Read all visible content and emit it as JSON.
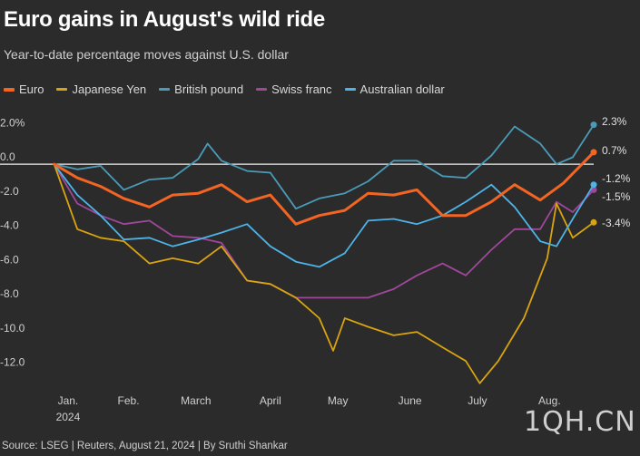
{
  "title": "Euro gains in August's wild ride",
  "subtitle": "Year-to-date percentage moves against U.S. dollar",
  "footer": "Source: LSEG | Reuters, August 21, 2024 | By Sruthi Shankar",
  "watermark": "1QH.CN",
  "chart_data": {
    "type": "line",
    "ylim": [
      -13.5,
      3.5
    ],
    "xlim": [
      "2024-01-01",
      "2024-08-21"
    ],
    "grid": false,
    "legend_position": "top",
    "yticks": [
      2.0,
      0.0,
      -2.0,
      -4.0,
      -6.0,
      -8.0,
      -10.0,
      -12.0
    ],
    "ytick_labels": [
      "2.0%",
      "0.0",
      "-2.0",
      "-4.0",
      "-6.0",
      "-8.0",
      "-10.0",
      "-12.0"
    ],
    "xtick_labels": [
      "Jan.",
      "Feb.",
      "March",
      "April",
      "May",
      "June",
      "July",
      "Aug."
    ],
    "xtick_sublabel": "2024",
    "series": [
      {
        "name": "Euro",
        "color": "#f26522",
        "width": 3,
        "end_label": "0.7%",
        "dates": [
          "2024-01-02",
          "2024-01-12",
          "2024-01-22",
          "2024-02-01",
          "2024-02-12",
          "2024-02-22",
          "2024-03-04",
          "2024-03-14",
          "2024-03-25",
          "2024-04-04",
          "2024-04-15",
          "2024-04-25",
          "2024-05-06",
          "2024-05-16",
          "2024-05-27",
          "2024-06-06",
          "2024-06-17",
          "2024-06-27",
          "2024-07-08",
          "2024-07-18",
          "2024-07-29",
          "2024-08-08",
          "2024-08-21"
        ],
        "values": [
          0.0,
          -0.8,
          -1.3,
          -2.0,
          -2.5,
          -1.8,
          -1.7,
          -1.2,
          -2.2,
          -1.8,
          -3.5,
          -3.0,
          -2.7,
          -1.7,
          -1.8,
          -1.5,
          -3.0,
          -3.0,
          -2.2,
          -1.2,
          -2.1,
          -1.1,
          0.7
        ]
      },
      {
        "name": "Japanese Yen",
        "color": "#d9a40f",
        "width": 1.8,
        "end_label": "-3.4%",
        "dates": [
          "2024-01-02",
          "2024-01-12",
          "2024-01-22",
          "2024-02-01",
          "2024-02-12",
          "2024-02-22",
          "2024-03-04",
          "2024-03-14",
          "2024-03-25",
          "2024-04-04",
          "2024-04-15",
          "2024-04-25",
          "2024-05-01",
          "2024-05-06",
          "2024-05-16",
          "2024-05-27",
          "2024-06-06",
          "2024-06-17",
          "2024-06-27",
          "2024-07-03",
          "2024-07-11",
          "2024-07-22",
          "2024-08-01",
          "2024-08-05",
          "2024-08-12",
          "2024-08-21"
        ],
        "values": [
          0.0,
          -3.8,
          -4.3,
          -4.5,
          -5.8,
          -5.5,
          -5.8,
          -4.8,
          -6.8,
          -7.0,
          -7.8,
          -9.0,
          -10.9,
          -9.0,
          -9.5,
          -10.0,
          -9.8,
          -10.7,
          -11.5,
          -12.8,
          -11.5,
          -9.0,
          -5.5,
          -2.3,
          -4.3,
          -3.4
        ]
      },
      {
        "name": "British pound",
        "color": "#4a9bb8",
        "width": 1.8,
        "end_label": "2.3%",
        "dates": [
          "2024-01-02",
          "2024-01-12",
          "2024-01-22",
          "2024-02-01",
          "2024-02-12",
          "2024-02-22",
          "2024-03-04",
          "2024-03-08",
          "2024-03-14",
          "2024-03-25",
          "2024-04-04",
          "2024-04-15",
          "2024-04-25",
          "2024-05-06",
          "2024-05-16",
          "2024-05-27",
          "2024-06-06",
          "2024-06-17",
          "2024-06-27",
          "2024-07-08",
          "2024-07-18",
          "2024-07-29",
          "2024-08-05",
          "2024-08-12",
          "2024-08-21"
        ],
        "values": [
          0.0,
          -0.3,
          -0.1,
          -1.5,
          -0.9,
          -0.8,
          0.3,
          1.2,
          0.2,
          -0.4,
          -0.5,
          -2.6,
          -2.0,
          -1.7,
          -1.0,
          0.2,
          0.2,
          -0.7,
          -0.8,
          0.5,
          2.2,
          1.2,
          0.0,
          0.4,
          2.3
        ]
      },
      {
        "name": "Swiss franc",
        "color": "#a0479c",
        "width": 1.8,
        "end_label": "-1.5%",
        "dates": [
          "2024-01-02",
          "2024-01-12",
          "2024-01-22",
          "2024-02-01",
          "2024-02-12",
          "2024-02-22",
          "2024-03-04",
          "2024-03-14",
          "2024-03-25",
          "2024-04-04",
          "2024-04-15",
          "2024-04-25",
          "2024-05-06",
          "2024-05-16",
          "2024-05-27",
          "2024-06-06",
          "2024-06-17",
          "2024-06-27",
          "2024-07-08",
          "2024-07-18",
          "2024-07-29",
          "2024-08-05",
          "2024-08-12",
          "2024-08-21"
        ],
        "values": [
          0.0,
          -2.3,
          -3.0,
          -3.5,
          -3.3,
          -4.2,
          -4.3,
          -4.6,
          -6.8,
          -7.0,
          -7.8,
          -7.8,
          -7.8,
          -7.8,
          -7.3,
          -6.5,
          -5.8,
          -6.5,
          -5.0,
          -3.8,
          -3.8,
          -2.2,
          -2.8,
          -1.5
        ]
      },
      {
        "name": "Australian dollar",
        "color": "#4db3e8",
        "width": 1.8,
        "end_label": "-1.2%",
        "dates": [
          "2024-01-02",
          "2024-01-12",
          "2024-01-22",
          "2024-02-01",
          "2024-02-12",
          "2024-02-22",
          "2024-03-04",
          "2024-03-14",
          "2024-03-25",
          "2024-04-04",
          "2024-04-15",
          "2024-04-25",
          "2024-05-06",
          "2024-05-16",
          "2024-05-27",
          "2024-06-06",
          "2024-06-17",
          "2024-06-27",
          "2024-07-08",
          "2024-07-18",
          "2024-07-29",
          "2024-08-05",
          "2024-08-12",
          "2024-08-21"
        ],
        "values": [
          0.0,
          -1.8,
          -3.0,
          -4.4,
          -4.3,
          -4.8,
          -4.4,
          -4.0,
          -3.5,
          -4.8,
          -5.7,
          -6.0,
          -5.2,
          -3.3,
          -3.2,
          -3.5,
          -3.0,
          -2.2,
          -1.2,
          -2.5,
          -4.5,
          -4.8,
          -3.2,
          -1.2
        ]
      }
    ]
  }
}
